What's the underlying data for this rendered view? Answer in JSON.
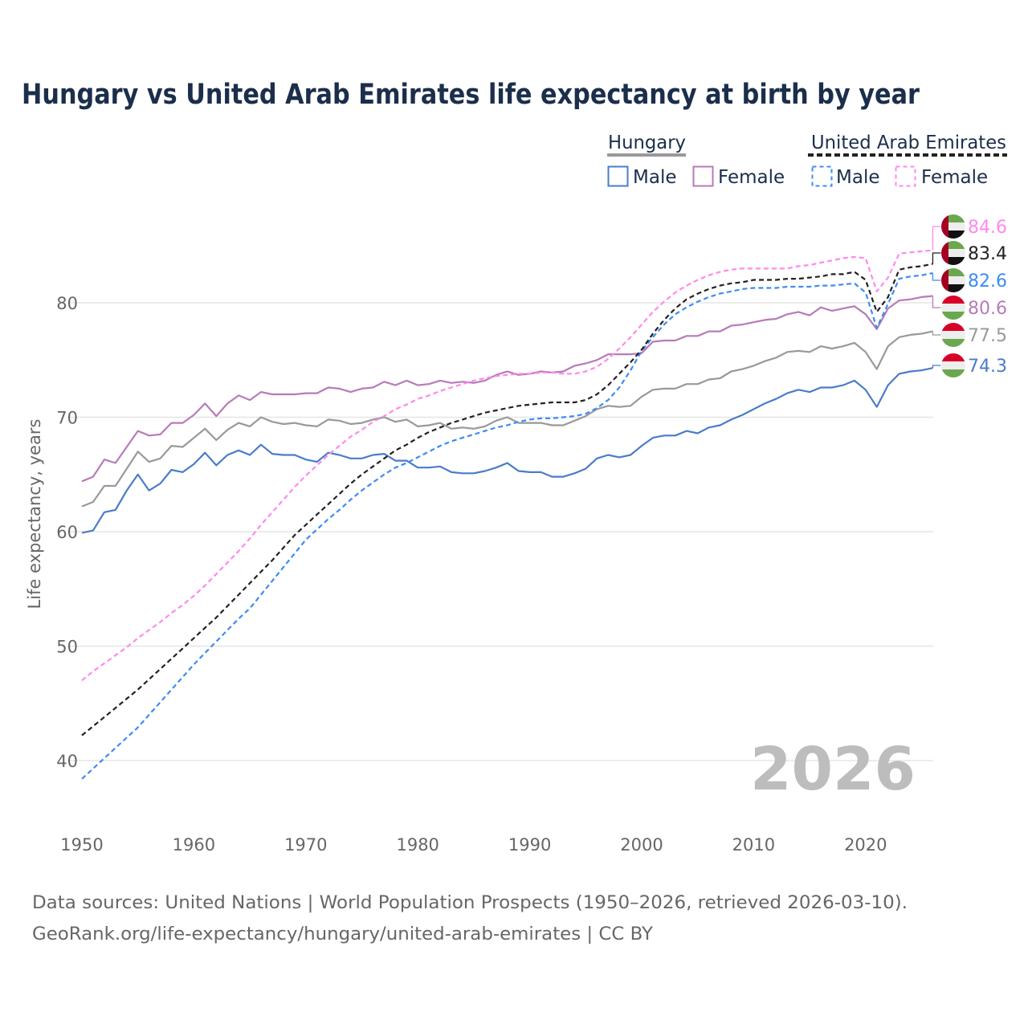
{
  "chart_data": {
    "type": "line",
    "title": "Hungary vs United Arab Emirates life expectancy at birth by year",
    "xlabel": "",
    "ylabel": "Life expectancy, years",
    "xlim": [
      1950,
      2026
    ],
    "ylim": [
      35,
      87
    ],
    "x_ticks": [
      1950,
      1960,
      1970,
      1980,
      1990,
      2000,
      2010,
      2020
    ],
    "y_ticks": [
      40,
      50,
      60,
      70,
      80
    ],
    "grid": true,
    "legend_position": "top-right",
    "year_watermark": "2026",
    "legend": {
      "groups": [
        {
          "country": "Hungary",
          "items": [
            "Male",
            "Female"
          ]
        },
        {
          "country": "United Arab Emirates",
          "items": [
            "Male",
            "Female"
          ]
        }
      ]
    },
    "x_start": 1950,
    "series": [
      {
        "name": "Hungary Male",
        "country": "Hungary",
        "sex": "Male",
        "color": "#4a7cc9",
        "dashed": false,
        "flag": "hungary",
        "end_label": "74.3",
        "values": [
          59.9,
          60.1,
          61.7,
          61.9,
          63.6,
          65.0,
          63.6,
          64.2,
          65.4,
          65.2,
          65.9,
          66.9,
          65.8,
          66.7,
          67.1,
          66.7,
          67.6,
          66.8,
          66.7,
          66.7,
          66.3,
          66.1,
          66.9,
          66.7,
          66.4,
          66.4,
          66.7,
          66.8,
          66.2,
          66.2,
          65.6,
          65.6,
          65.7,
          65.2,
          65.1,
          65.1,
          65.3,
          65.6,
          66.0,
          65.3,
          65.2,
          65.2,
          64.8,
          64.8,
          65.1,
          65.5,
          66.4,
          66.7,
          66.5,
          66.7,
          67.5,
          68.2,
          68.4,
          68.4,
          68.8,
          68.6,
          69.1,
          69.3,
          69.8,
          70.2,
          70.7,
          71.2,
          71.6,
          72.1,
          72.4,
          72.2,
          72.6,
          72.6,
          72.8,
          73.2,
          72.4,
          70.9,
          72.8,
          73.8,
          74.0,
          74.1,
          74.3
        ]
      },
      {
        "name": "Hungary Total",
        "country": "Hungary",
        "sex": "Total",
        "color": "#999999",
        "dashed": false,
        "flag": "hungary",
        "end_label": "77.5",
        "values": [
          62.2,
          62.6,
          64.0,
          64.0,
          65.5,
          67.0,
          66.1,
          66.4,
          67.5,
          67.4,
          68.2,
          69.0,
          68.0,
          68.9,
          69.5,
          69.2,
          70.0,
          69.6,
          69.4,
          69.5,
          69.3,
          69.2,
          69.8,
          69.7,
          69.4,
          69.5,
          69.8,
          70.0,
          69.6,
          69.8,
          69.2,
          69.3,
          69.5,
          69.0,
          69.1,
          69.0,
          69.2,
          69.7,
          70.0,
          69.5,
          69.5,
          69.5,
          69.3,
          69.3,
          69.7,
          70.1,
          70.7,
          71.0,
          70.9,
          71.0,
          71.8,
          72.4,
          72.5,
          72.5,
          72.9,
          72.9,
          73.3,
          73.4,
          74.0,
          74.2,
          74.5,
          74.9,
          75.2,
          75.7,
          75.8,
          75.7,
          76.2,
          76.0,
          76.2,
          76.5,
          75.7,
          74.2,
          76.2,
          77.0,
          77.2,
          77.3,
          77.5
        ]
      },
      {
        "name": "Hungary Female",
        "country": "Hungary",
        "sex": "Female",
        "color": "#b77bb9",
        "dashed": false,
        "flag": "hungary",
        "end_label": "80.6",
        "values": [
          64.4,
          64.8,
          66.3,
          66.0,
          67.4,
          68.8,
          68.4,
          68.5,
          69.5,
          69.5,
          70.2,
          71.2,
          70.1,
          71.2,
          71.9,
          71.5,
          72.2,
          72.0,
          72.0,
          72.0,
          72.1,
          72.1,
          72.6,
          72.5,
          72.2,
          72.5,
          72.6,
          73.1,
          72.8,
          73.2,
          72.8,
          72.9,
          73.2,
          73.0,
          73.1,
          73.0,
          73.2,
          73.7,
          74.0,
          73.7,
          73.8,
          74.0,
          73.9,
          74.0,
          74.5,
          74.7,
          75.0,
          75.5,
          75.5,
          75.5,
          75.6,
          76.6,
          76.7,
          76.7,
          77.1,
          77.1,
          77.5,
          77.5,
          78.0,
          78.1,
          78.3,
          78.5,
          78.6,
          79.0,
          79.2,
          78.9,
          79.6,
          79.3,
          79.5,
          79.7,
          79.0,
          77.7,
          79.5,
          80.2,
          80.3,
          80.5,
          80.6
        ]
      },
      {
        "name": "United Arab Emirates Male",
        "country": "United Arab Emirates",
        "sex": "Male",
        "color": "#3d8bf5",
        "dashed": true,
        "flag": "uae",
        "end_label": "82.6",
        "values": [
          38.4,
          39.3,
          40.2,
          41.1,
          42.0,
          42.9,
          44.0,
          45.1,
          46.2,
          47.3,
          48.4,
          49.4,
          50.4,
          51.4,
          52.4,
          53.3,
          54.5,
          55.7,
          56.9,
          58.1,
          59.3,
          60.2,
          61.1,
          61.9,
          62.8,
          63.6,
          64.3,
          65.0,
          65.6,
          66.0,
          66.5,
          67.0,
          67.5,
          67.9,
          68.2,
          68.5,
          68.8,
          69.1,
          69.3,
          69.6,
          69.8,
          69.9,
          69.9,
          70.0,
          70.1,
          70.3,
          70.8,
          71.5,
          72.6,
          74.1,
          75.8,
          77.0,
          78.1,
          79.0,
          79.6,
          80.1,
          80.5,
          80.8,
          81.0,
          81.2,
          81.3,
          81.3,
          81.3,
          81.4,
          81.4,
          81.4,
          81.5,
          81.5,
          81.6,
          81.7,
          80.9,
          77.8,
          79.9,
          82.1,
          82.3,
          82.4,
          82.6
        ]
      },
      {
        "name": "United Arab Emirates Total",
        "country": "United Arab Emirates",
        "sex": "Total",
        "color": "#222222",
        "dashed": true,
        "flag": "uae",
        "end_label": "83.4",
        "values": [
          42.2,
          43.0,
          43.8,
          44.6,
          45.4,
          46.2,
          47.1,
          48.0,
          48.9,
          49.8,
          50.7,
          51.6,
          52.5,
          53.5,
          54.5,
          55.5,
          56.5,
          57.5,
          58.6,
          59.7,
          60.6,
          61.5,
          62.4,
          63.3,
          64.2,
          65.0,
          65.7,
          66.4,
          67.1,
          67.6,
          68.2,
          68.7,
          69.1,
          69.5,
          69.8,
          70.1,
          70.4,
          70.6,
          70.8,
          71.0,
          71.1,
          71.2,
          71.3,
          71.3,
          71.3,
          71.5,
          72.0,
          72.8,
          73.8,
          74.8,
          75.9,
          77.3,
          78.5,
          79.5,
          80.3,
          80.8,
          81.2,
          81.5,
          81.7,
          81.8,
          82.0,
          82.0,
          82.0,
          82.1,
          82.1,
          82.2,
          82.3,
          82.5,
          82.5,
          82.7,
          82.0,
          79.2,
          80.5,
          82.9,
          83.1,
          83.2,
          83.4
        ]
      },
      {
        "name": "United Arab Emirates Female",
        "country": "United Arab Emirates",
        "sex": "Female",
        "color": "#ff88ee",
        "dashed": true,
        "flag": "uae",
        "end_label": "84.6",
        "values": [
          47.0,
          47.8,
          48.5,
          49.2,
          49.9,
          50.7,
          51.4,
          52.1,
          52.9,
          53.6,
          54.4,
          55.3,
          56.3,
          57.3,
          58.3,
          59.4,
          60.6,
          61.7,
          62.8,
          63.9,
          64.9,
          65.8,
          66.7,
          67.5,
          68.3,
          68.9,
          69.6,
          70.1,
          70.7,
          71.1,
          71.6,
          71.9,
          72.3,
          72.6,
          72.9,
          73.2,
          73.4,
          73.6,
          73.7,
          73.8,
          73.8,
          73.9,
          73.9,
          73.8,
          73.8,
          74.0,
          74.4,
          75.1,
          76.0,
          77.0,
          78.1,
          79.2,
          80.1,
          80.9,
          81.5,
          82.0,
          82.4,
          82.7,
          82.9,
          83.0,
          83.0,
          83.0,
          83.0,
          83.0,
          83.2,
          83.3,
          83.5,
          83.7,
          83.9,
          84.0,
          83.9,
          81.0,
          82.2,
          84.3,
          84.4,
          84.5,
          84.6
        ]
      }
    ]
  },
  "footer": {
    "line1": "Data sources: United Nations | World Population Prospects (1950–2026, retrieved 2026-03-10).",
    "line2": "GeoRank.org/life-expectancy/hungary/united-arab-emirates | CC BY"
  },
  "colors": {
    "title": "#1b2e4b",
    "grid": "#e6e6e6",
    "axis_text": "#666666",
    "watermark": "#bdbdbd"
  }
}
